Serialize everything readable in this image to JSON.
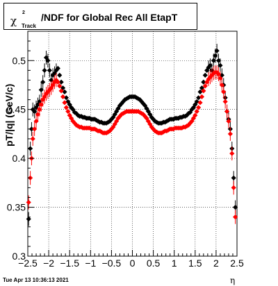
{
  "title": {
    "chi": "χ",
    "chi_sup": "2",
    "chi_sub": "Track",
    "rest": "/NDF for Global Rec All EtapT"
  },
  "ylabel": "pT/|q| (GeV/c)",
  "xlabel": "η",
  "timestamp": "Tue Apr 13 10:36:13 2021",
  "chart_data": {
    "type": "scatter",
    "xlim": [
      -2.5,
      2.5
    ],
    "ylim": [
      0.3,
      0.53
    ],
    "x_ticks": [
      -2.5,
      -2,
      -1.5,
      -1,
      -0.5,
      0,
      0.5,
      1,
      1.5,
      2,
      2.5
    ],
    "x_tick_labels": [
      "−2.5",
      "−2",
      "−1.5",
      "−1",
      "−0.5",
      "0",
      "0.5",
      "1",
      "1.5",
      "2",
      "2.5"
    ],
    "y_ticks": [
      0.3,
      0.35,
      0.4,
      0.45,
      0.5
    ],
    "y_tick_labels": [
      "0.3",
      "0.35",
      "0.4",
      "0.45",
      "0.5"
    ],
    "grid": true,
    "series": [
      {
        "color": "#000000",
        "points": [
          [
            -2.48,
            0.338
          ],
          [
            -2.44,
            0.41
          ],
          [
            -2.41,
            0.43
          ],
          [
            -2.38,
            0.45
          ],
          [
            -2.34,
            0.448
          ],
          [
            -2.3,
            0.452
          ],
          [
            -2.26,
            0.455
          ],
          [
            -2.22,
            0.458
          ],
          [
            -2.18,
            0.47
          ],
          [
            -2.14,
            0.478
          ],
          [
            -2.1,
            0.49
          ],
          [
            -2.06,
            0.503
          ],
          [
            -2.02,
            0.5
          ],
          [
            -1.98,
            0.49
          ],
          [
            -1.94,
            0.48
          ],
          [
            -1.9,
            0.485
          ],
          [
            -1.86,
            0.487
          ],
          [
            -1.82,
            0.49
          ],
          [
            -1.78,
            0.492
          ],
          [
            -1.74,
            0.485
          ],
          [
            -1.7,
            0.478
          ],
          [
            -1.66,
            0.472
          ],
          [
            -1.62,
            0.468
          ],
          [
            -1.58,
            0.462
          ],
          [
            -1.54,
            0.458
          ],
          [
            -1.5,
            0.455
          ],
          [
            -1.46,
            0.452
          ],
          [
            -1.42,
            0.45
          ],
          [
            -1.38,
            0.447
          ],
          [
            -1.34,
            0.446
          ],
          [
            -1.3,
            0.444
          ],
          [
            -1.26,
            0.443
          ],
          [
            -1.22,
            0.443
          ],
          [
            -1.18,
            0.442
          ],
          [
            -1.14,
            0.442
          ],
          [
            -1.1,
            0.441
          ],
          [
            -1.06,
            0.441
          ],
          [
            -1.02,
            0.441
          ],
          [
            -0.98,
            0.44
          ],
          [
            -0.94,
            0.44
          ],
          [
            -0.9,
            0.44
          ],
          [
            -0.86,
            0.439
          ],
          [
            -0.82,
            0.438
          ],
          [
            -0.78,
            0.437
          ],
          [
            -0.74,
            0.437
          ],
          [
            -0.7,
            0.436
          ],
          [
            -0.66,
            0.436
          ],
          [
            -0.62,
            0.436
          ],
          [
            -0.58,
            0.437
          ],
          [
            -0.54,
            0.438
          ],
          [
            -0.5,
            0.44
          ],
          [
            -0.46,
            0.442
          ],
          [
            -0.42,
            0.445
          ],
          [
            -0.38,
            0.448
          ],
          [
            -0.34,
            0.451
          ],
          [
            -0.3,
            0.454
          ],
          [
            -0.26,
            0.456
          ],
          [
            -0.22,
            0.458
          ],
          [
            -0.18,
            0.46
          ],
          [
            -0.14,
            0.461
          ],
          [
            -0.1,
            0.462
          ],
          [
            -0.06,
            0.463
          ],
          [
            -0.02,
            0.463
          ],
          [
            0.02,
            0.463
          ],
          [
            0.06,
            0.463
          ],
          [
            0.1,
            0.462
          ],
          [
            0.14,
            0.461
          ],
          [
            0.18,
            0.46
          ],
          [
            0.22,
            0.458
          ],
          [
            0.26,
            0.456
          ],
          [
            0.3,
            0.454
          ],
          [
            0.34,
            0.451
          ],
          [
            0.38,
            0.448
          ],
          [
            0.42,
            0.445
          ],
          [
            0.46,
            0.442
          ],
          [
            0.5,
            0.44
          ],
          [
            0.54,
            0.438
          ],
          [
            0.58,
            0.437
          ],
          [
            0.62,
            0.436
          ],
          [
            0.66,
            0.436
          ],
          [
            0.7,
            0.436
          ],
          [
            0.74,
            0.437
          ],
          [
            0.78,
            0.437
          ],
          [
            0.82,
            0.438
          ],
          [
            0.86,
            0.439
          ],
          [
            0.9,
            0.44
          ],
          [
            0.94,
            0.44
          ],
          [
            0.98,
            0.44
          ],
          [
            1.02,
            0.441
          ],
          [
            1.06,
            0.441
          ],
          [
            1.1,
            0.441
          ],
          [
            1.14,
            0.442
          ],
          [
            1.18,
            0.442
          ],
          [
            1.22,
            0.443
          ],
          [
            1.26,
            0.443
          ],
          [
            1.3,
            0.444
          ],
          [
            1.34,
            0.446
          ],
          [
            1.38,
            0.447
          ],
          [
            1.42,
            0.45
          ],
          [
            1.46,
            0.452
          ],
          [
            1.5,
            0.455
          ],
          [
            1.54,
            0.458
          ],
          [
            1.58,
            0.462
          ],
          [
            1.62,
            0.468
          ],
          [
            1.66,
            0.472
          ],
          [
            1.7,
            0.478
          ],
          [
            1.74,
            0.485
          ],
          [
            1.78,
            0.49
          ],
          [
            1.82,
            0.493
          ],
          [
            1.86,
            0.495
          ],
          [
            1.9,
            0.49
          ],
          [
            1.94,
            0.5
          ],
          [
            1.98,
            0.505
          ],
          [
            2.02,
            0.51
          ],
          [
            2.06,
            0.5
          ],
          [
            2.1,
            0.495
          ],
          [
            2.14,
            0.485
          ],
          [
            2.18,
            0.475
          ],
          [
            2.22,
            0.462
          ],
          [
            2.26,
            0.448
          ],
          [
            2.3,
            0.44
          ],
          [
            2.34,
            0.43
          ],
          [
            2.38,
            0.41
          ],
          [
            2.42,
            0.38
          ],
          [
            2.46,
            0.35
          ]
        ]
      },
      {
        "color": "#ff0000",
        "points": [
          [
            -2.48,
            0.355
          ],
          [
            -2.44,
            0.38
          ],
          [
            -2.41,
            0.4
          ],
          [
            -2.38,
            0.42
          ],
          [
            -2.34,
            0.43
          ],
          [
            -2.3,
            0.438
          ],
          [
            -2.26,
            0.445
          ],
          [
            -2.22,
            0.45
          ],
          [
            -2.18,
            0.455
          ],
          [
            -2.14,
            0.46
          ],
          [
            -2.1,
            0.463
          ],
          [
            -2.06,
            0.466
          ],
          [
            -2.02,
            0.468
          ],
          [
            -1.98,
            0.47
          ],
          [
            -1.94,
            0.472
          ],
          [
            -1.9,
            0.475
          ],
          [
            -1.86,
            0.478
          ],
          [
            -1.82,
            0.48
          ],
          [
            -1.78,
            0.478
          ],
          [
            -1.74,
            0.474
          ],
          [
            -1.7,
            0.469
          ],
          [
            -1.66,
            0.463
          ],
          [
            -1.62,
            0.457
          ],
          [
            -1.58,
            0.452
          ],
          [
            -1.54,
            0.448
          ],
          [
            -1.5,
            0.444
          ],
          [
            -1.46,
            0.441
          ],
          [
            -1.42,
            0.438
          ],
          [
            -1.38,
            0.436
          ],
          [
            -1.34,
            0.434
          ],
          [
            -1.3,
            0.433
          ],
          [
            -1.26,
            0.432
          ],
          [
            -1.22,
            0.432
          ],
          [
            -1.18,
            0.431
          ],
          [
            -1.14,
            0.431
          ],
          [
            -1.1,
            0.431
          ],
          [
            -1.06,
            0.431
          ],
          [
            -1.02,
            0.431
          ],
          [
            -0.98,
            0.43
          ],
          [
            -0.94,
            0.43
          ],
          [
            -0.9,
            0.43
          ],
          [
            -0.86,
            0.429
          ],
          [
            -0.82,
            0.428
          ],
          [
            -0.78,
            0.428
          ],
          [
            -0.74,
            0.427
          ],
          [
            -0.7,
            0.426
          ],
          [
            -0.66,
            0.426
          ],
          [
            -0.62,
            0.426
          ],
          [
            -0.58,
            0.427
          ],
          [
            -0.54,
            0.428
          ],
          [
            -0.5,
            0.43
          ],
          [
            -0.46,
            0.432
          ],
          [
            -0.42,
            0.435
          ],
          [
            -0.38,
            0.438
          ],
          [
            -0.34,
            0.441
          ],
          [
            -0.3,
            0.443
          ],
          [
            -0.26,
            0.445
          ],
          [
            -0.22,
            0.446
          ],
          [
            -0.18,
            0.447
          ],
          [
            -0.14,
            0.448
          ],
          [
            -0.1,
            0.448
          ],
          [
            -0.06,
            0.448
          ],
          [
            -0.02,
            0.448
          ],
          [
            0.02,
            0.448
          ],
          [
            0.06,
            0.448
          ],
          [
            0.1,
            0.448
          ],
          [
            0.14,
            0.448
          ],
          [
            0.18,
            0.447
          ],
          [
            0.22,
            0.446
          ],
          [
            0.26,
            0.445
          ],
          [
            0.3,
            0.443
          ],
          [
            0.34,
            0.441
          ],
          [
            0.38,
            0.438
          ],
          [
            0.42,
            0.435
          ],
          [
            0.46,
            0.432
          ],
          [
            0.5,
            0.43
          ],
          [
            0.54,
            0.428
          ],
          [
            0.58,
            0.427
          ],
          [
            0.62,
            0.426
          ],
          [
            0.66,
            0.426
          ],
          [
            0.7,
            0.426
          ],
          [
            0.74,
            0.427
          ],
          [
            0.78,
            0.428
          ],
          [
            0.82,
            0.428
          ],
          [
            0.86,
            0.429
          ],
          [
            0.9,
            0.43
          ],
          [
            0.94,
            0.43
          ],
          [
            0.98,
            0.43
          ],
          [
            1.02,
            0.431
          ],
          [
            1.06,
            0.431
          ],
          [
            1.1,
            0.431
          ],
          [
            1.14,
            0.431
          ],
          [
            1.18,
            0.431
          ],
          [
            1.22,
            0.432
          ],
          [
            1.26,
            0.432
          ],
          [
            1.3,
            0.433
          ],
          [
            1.34,
            0.434
          ],
          [
            1.38,
            0.436
          ],
          [
            1.42,
            0.438
          ],
          [
            1.46,
            0.441
          ],
          [
            1.5,
            0.444
          ],
          [
            1.54,
            0.448
          ],
          [
            1.58,
            0.452
          ],
          [
            1.62,
            0.457
          ],
          [
            1.66,
            0.463
          ],
          [
            1.7,
            0.469
          ],
          [
            1.74,
            0.474
          ],
          [
            1.78,
            0.478
          ],
          [
            1.82,
            0.481
          ],
          [
            1.86,
            0.483
          ],
          [
            1.9,
            0.485
          ],
          [
            1.94,
            0.487
          ],
          [
            1.98,
            0.488
          ],
          [
            2.02,
            0.488
          ],
          [
            2.06,
            0.486
          ],
          [
            2.1,
            0.482
          ],
          [
            2.14,
            0.475
          ],
          [
            2.18,
            0.468
          ],
          [
            2.22,
            0.458
          ],
          [
            2.26,
            0.448
          ],
          [
            2.3,
            0.438
          ],
          [
            2.34,
            0.425
          ],
          [
            2.38,
            0.405
          ],
          [
            2.42,
            0.37
          ],
          [
            2.46,
            0.34
          ]
        ]
      }
    ]
  }
}
